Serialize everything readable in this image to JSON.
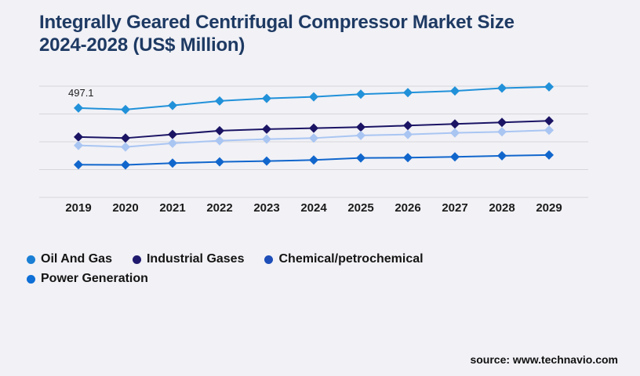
{
  "page": {
    "background_color": "#f1f1f6"
  },
  "header": {
    "title_line1": "Integrally Geared Centrifugal Compressor Market Size",
    "title_line2": "2024-2028 (US$ Million)",
    "title_color": "#1e3a63"
  },
  "chart_data": {
    "type": "line",
    "title": "Integrally Geared Centrifugal Compressor Market Size 2024-2028 (US$ Million)",
    "xlabel": "",
    "ylabel": "",
    "categories": [
      "2019",
      "2020",
      "2021",
      "2022",
      "2023",
      "2024",
      "2025",
      "2026",
      "2027",
      "2028",
      "2029"
    ],
    "series": [
      {
        "name": "Oil And Gas",
        "color": "#2191d9",
        "legend_color": "#1a7fd4",
        "values": [
          497.1,
          488.7,
          511.6,
          536.4,
          550.8,
          559.5,
          574.3,
          582.6,
          592.2,
          607.9,
          614.9
        ]
      },
      {
        "name": "Industrial Gases",
        "color": "#1b1464",
        "legend_color": "#201a6e",
        "values": [
          336.0,
          329.8,
          350.3,
          370.8,
          379.5,
          385.2,
          390.8,
          399.6,
          408.3,
          417.0,
          425.7
        ]
      },
      {
        "name": "Chemical/petrochemical",
        "color": "#a9c5f2",
        "legend_color": "#1d4db8",
        "values": [
          289.3,
          280.6,
          301.1,
          315.5,
          324.2,
          329.8,
          344.7,
          350.3,
          359.0,
          364.7,
          373.4
        ]
      },
      {
        "name": "Power Generation",
        "color": "#1166cc",
        "legend_color": "#0e6fd6",
        "values": [
          181.7,
          180.9,
          190.4,
          197.8,
          202.2,
          207.8,
          219.6,
          221.0,
          225.3,
          231.4,
          235.7
        ]
      }
    ],
    "annotation": {
      "text": "497.1",
      "series": "Oil And Gas",
      "category": "2019"
    },
    "ylim": [
      0,
      660
    ],
    "gridline_count": 5,
    "grid": "horizontal-only",
    "gridline_color": "#d7d7db",
    "legend_position": "bottom-left",
    "marker": "diamond"
  },
  "footer": {
    "source_label": "source: www.technavio.com"
  }
}
